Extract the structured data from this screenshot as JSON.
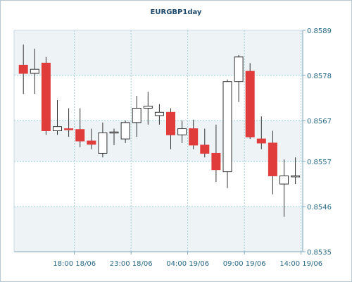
{
  "chart_data": {
    "type": "candlestick",
    "title": "EURGBP1day",
    "yticks": [
      "0.8535",
      "0.8546",
      "0.8557",
      "0.8567",
      "0.8578",
      "0.8589"
    ],
    "ylim": [
      0.8535,
      0.8589
    ],
    "xticks": [
      {
        "label": "18:00 18/06",
        "index": 4.5
      },
      {
        "label": "23:00 18/06",
        "index": 9.5
      },
      {
        "label": "04:00 19/06",
        "index": 14.5
      },
      {
        "label": "09:00 19/06",
        "index": 19.5
      },
      {
        "label": "14:00 19/06",
        "index": 24.5
      }
    ],
    "grid": true,
    "colors": {
      "up_fill": "#ffffff",
      "down_fill": "#e03c3c",
      "axis_text": "#2a6a86",
      "grid": "#9fd0d8",
      "band": "#eef3f6"
    },
    "candles": [
      {
        "o": 0.85805,
        "h": 0.85855,
        "l": 0.85735,
        "c": 0.85785
      },
      {
        "o": 0.85785,
        "h": 0.85845,
        "l": 0.85735,
        "c": 0.85795
      },
      {
        "o": 0.8581,
        "h": 0.85825,
        "l": 0.85635,
        "c": 0.85645
      },
      {
        "o": 0.85645,
        "h": 0.8572,
        "l": 0.85635,
        "c": 0.85655
      },
      {
        "o": 0.8565,
        "h": 0.857,
        "l": 0.8563,
        "c": 0.85648
      },
      {
        "o": 0.85648,
        "h": 0.857,
        "l": 0.85605,
        "c": 0.8562
      },
      {
        "o": 0.8562,
        "h": 0.8565,
        "l": 0.856,
        "c": 0.85612
      },
      {
        "o": 0.8559,
        "h": 0.85665,
        "l": 0.8558,
        "c": 0.8564
      },
      {
        "o": 0.8564,
        "h": 0.8565,
        "l": 0.8561,
        "c": 0.85642
      },
      {
        "o": 0.85625,
        "h": 0.8567,
        "l": 0.85615,
        "c": 0.85665
      },
      {
        "o": 0.85665,
        "h": 0.8573,
        "l": 0.8563,
        "c": 0.857
      },
      {
        "o": 0.857,
        "h": 0.8574,
        "l": 0.8566,
        "c": 0.85705
      },
      {
        "o": 0.85682,
        "h": 0.8571,
        "l": 0.8566,
        "c": 0.8569
      },
      {
        "o": 0.8569,
        "h": 0.857,
        "l": 0.856,
        "c": 0.85635
      },
      {
        "o": 0.85635,
        "h": 0.8567,
        "l": 0.85615,
        "c": 0.8565
      },
      {
        "o": 0.8565,
        "h": 0.85672,
        "l": 0.856,
        "c": 0.8561
      },
      {
        "o": 0.8561,
        "h": 0.8565,
        "l": 0.8558,
        "c": 0.8559
      },
      {
        "o": 0.8559,
        "h": 0.8566,
        "l": 0.8552,
        "c": 0.8555
      },
      {
        "o": 0.85545,
        "h": 0.8577,
        "l": 0.85505,
        "c": 0.85765
      },
      {
        "o": 0.85765,
        "h": 0.8583,
        "l": 0.85715,
        "c": 0.85825
      },
      {
        "o": 0.8579,
        "h": 0.8581,
        "l": 0.85625,
        "c": 0.8563
      },
      {
        "o": 0.85625,
        "h": 0.8568,
        "l": 0.856,
        "c": 0.85615
      },
      {
        "o": 0.85615,
        "h": 0.85645,
        "l": 0.8549,
        "c": 0.85535
      },
      {
        "o": 0.85515,
        "h": 0.85575,
        "l": 0.85435,
        "c": 0.85535
      },
      {
        "o": 0.85535,
        "h": 0.8558,
        "l": 0.85515,
        "c": 0.85535
      }
    ]
  }
}
